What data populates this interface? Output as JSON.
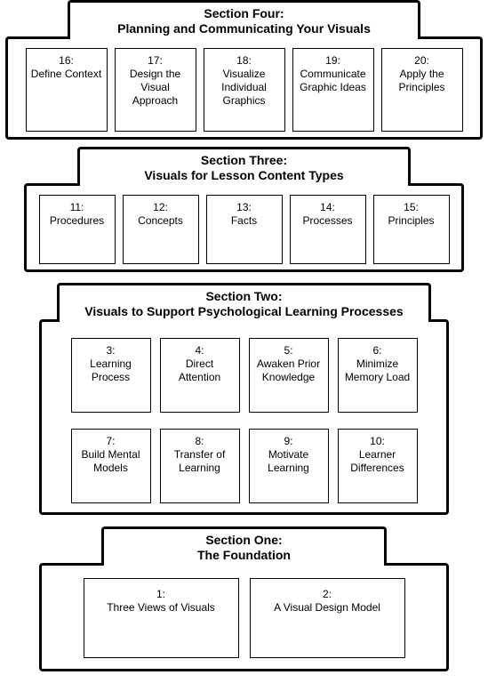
{
  "diagram_type": "hierarchical_sections",
  "colors": {
    "background": "#ffffff",
    "border": "#000000",
    "text": "#000000"
  },
  "sections": {
    "four": {
      "title_line1": "Section Four:",
      "title_line2": "Planning and Communicating Your Visuals",
      "chapters": [
        {
          "num": "16:",
          "label": "Define Context"
        },
        {
          "num": "17:",
          "label": "Design the Visual Approach"
        },
        {
          "num": "18:",
          "label": "Visualize Individual Graphics"
        },
        {
          "num": "19:",
          "label": "Communicate Graphic Ideas"
        },
        {
          "num": "20:",
          "label": "Apply the Principles"
        }
      ]
    },
    "three": {
      "title_line1": "Section Three:",
      "title_line2": "Visuals for Lesson Content Types",
      "chapters": [
        {
          "num": "11:",
          "label": "Procedures"
        },
        {
          "num": "12:",
          "label": "Concepts"
        },
        {
          "num": "13:",
          "label": "Facts"
        },
        {
          "num": "14:",
          "label": "Processes"
        },
        {
          "num": "15:",
          "label": "Principles"
        }
      ]
    },
    "two": {
      "title_line1": "Section Two:",
      "title_line2": "Visuals to Support Psychological Learning Processes",
      "chapters": [
        {
          "num": "3:",
          "label": "Learning Process"
        },
        {
          "num": "4:",
          "label": "Direct Attention"
        },
        {
          "num": "5:",
          "label": "Awaken Prior Knowledge"
        },
        {
          "num": "6:",
          "label": "Minimize Memory Load"
        },
        {
          "num": "7:",
          "label": "Build Mental Models"
        },
        {
          "num": "8:",
          "label": "Transfer of Learning"
        },
        {
          "num": "9:",
          "label": "Motivate Learning"
        },
        {
          "num": "10:",
          "label": "Learner Differences"
        }
      ]
    },
    "one": {
      "title_line1": "Section One:",
      "title_line2": "The Foundation",
      "chapters": [
        {
          "num": "1:",
          "label": "Three Views of Visuals"
        },
        {
          "num": "2:",
          "label": "A Visual Design Model"
        }
      ]
    }
  }
}
